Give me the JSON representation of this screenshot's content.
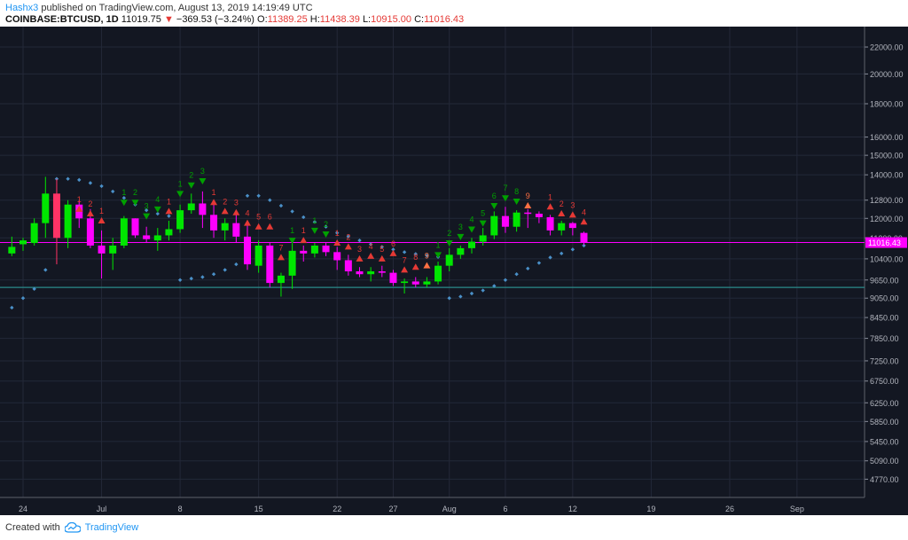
{
  "header": {
    "username": "Hashx3",
    "published_text": "published on TradingView.com, August 13, 2019 14:19:49 UTC",
    "symbol": "COINBASE:BTCUSD, 1D",
    "last": "11019.75",
    "change": "−369.53 (−3.24%)",
    "o_label": "O:",
    "o_value": "11389.25",
    "h_label": "H:",
    "h_value": "11438.39",
    "l_label": "L:",
    "l_value": "10915.00",
    "c_label": "C:",
    "c_value": "11016.43"
  },
  "footer": {
    "created_with": "Created with",
    "brand": "TradingView"
  },
  "colors": {
    "background": "#131722",
    "grid": "#232838",
    "up": "#00e600",
    "down": "#ff00ff",
    "down_early": "#ff3366",
    "sar": "#4a90c8",
    "buy_setup": "#00a000",
    "sell_setup": "#e53935",
    "orange_signal": "#ff7043",
    "support_line": "#2a8a8a",
    "price_line": "#ff00ff"
  },
  "chart_data": {
    "type": "candlestick",
    "scale": "log",
    "ylim": [
      4500,
      23500
    ],
    "y_ticks": [
      22000,
      20000,
      18000,
      16000,
      15000,
      14000,
      12800,
      12000,
      11200,
      10400,
      9650,
      9050,
      8450,
      7850,
      7250,
      6750,
      6250,
      5850,
      5450,
      5090,
      4770
    ],
    "y_tick_labels": [
      "22000.00",
      "20000.00",
      "18000.00",
      "16000.00",
      "15000.00",
      "14000.00",
      "12800.00",
      "12000.00",
      "11200.00",
      "10400.00",
      "9650.00",
      "9050.00",
      "8450.00",
      "7850.00",
      "7250.00",
      "6750.00",
      "6250.00",
      "5850.00",
      "5450.00",
      "5090.00",
      "4770.00"
    ],
    "last_price": 11016.43,
    "last_price_label": "11016.43",
    "support_level": 9400,
    "x_labels": [
      {
        "day": 0,
        "label": "24"
      },
      {
        "day": 7,
        "label": "Jul"
      },
      {
        "day": 14,
        "label": "8"
      },
      {
        "day": 21,
        "label": "15"
      },
      {
        "day": 28,
        "label": "22"
      },
      {
        "day": 33,
        "label": "27"
      },
      {
        "day": 38,
        "label": "Aug"
      },
      {
        "day": 43,
        "label": "6"
      },
      {
        "day": 49,
        "label": "12"
      },
      {
        "day": 56,
        "label": "19"
      },
      {
        "day": 63,
        "label": "26"
      },
      {
        "day": 69,
        "label": "Sep"
      }
    ],
    "candles": [
      {
        "day": -1,
        "o": 10600,
        "h": 11250,
        "l": 10500,
        "c": 10850
      },
      {
        "day": 0,
        "o": 10950,
        "h": 11200,
        "l": 10700,
        "c": 11100
      },
      {
        "day": 1,
        "o": 11000,
        "h": 12000,
        "l": 10900,
        "c": 11800
      },
      {
        "day": 2,
        "o": 11800,
        "h": 13900,
        "l": 11200,
        "c": 13100
      },
      {
        "day": 3,
        "o": 13100,
        "h": 13800,
        "l": 10200,
        "c": 11200
      },
      {
        "day": 4,
        "o": 11200,
        "h": 12800,
        "l": 10800,
        "c": 12600
      },
      {
        "day": 5,
        "o": 12600,
        "h": 12800,
        "l": 11600,
        "c": 12000
      },
      {
        "day": 6,
        "o": 12000,
        "h": 12400,
        "l": 10800,
        "c": 10900
      },
      {
        "day": 7,
        "o": 10900,
        "h": 11500,
        "l": 9700,
        "c": 10600
      },
      {
        "day": 8,
        "o": 10600,
        "h": 11200,
        "l": 10000,
        "c": 10900
      },
      {
        "day": 9,
        "o": 10900,
        "h": 12100,
        "l": 10800,
        "c": 12000
      },
      {
        "day": 10,
        "o": 12000,
        "h": 12000,
        "l": 11200,
        "c": 11300
      },
      {
        "day": 11,
        "o": 11300,
        "h": 11650,
        "l": 11000,
        "c": 11150
      },
      {
        "day": 12,
        "o": 11100,
        "h": 11600,
        "l": 10700,
        "c": 11300
      },
      {
        "day": 13,
        "o": 11300,
        "h": 11900,
        "l": 11100,
        "c": 11550
      },
      {
        "day": 14,
        "o": 11550,
        "h": 12600,
        "l": 11400,
        "c": 12350
      },
      {
        "day": 15,
        "o": 12350,
        "h": 13100,
        "l": 12200,
        "c": 12650
      },
      {
        "day": 16,
        "o": 12650,
        "h": 13200,
        "l": 11600,
        "c": 12150
      },
      {
        "day": 17,
        "o": 12150,
        "h": 12700,
        "l": 11200,
        "c": 11500
      },
      {
        "day": 18,
        "o": 11500,
        "h": 12000,
        "l": 11100,
        "c": 11800
      },
      {
        "day": 19,
        "o": 11800,
        "h": 12200,
        "l": 11000,
        "c": 11250
      },
      {
        "day": 20,
        "o": 11250,
        "h": 11700,
        "l": 10000,
        "c": 10200
      },
      {
        "day": 21,
        "o": 10150,
        "h": 11100,
        "l": 9900,
        "c": 10900
      },
      {
        "day": 22,
        "o": 10900,
        "h": 11000,
        "l": 9400,
        "c": 9550
      },
      {
        "day": 23,
        "o": 9550,
        "h": 9900,
        "l": 9100,
        "c": 9800
      },
      {
        "day": 24,
        "o": 9800,
        "h": 11000,
        "l": 9350,
        "c": 10700
      },
      {
        "day": 25,
        "o": 10700,
        "h": 10900,
        "l": 10300,
        "c": 10600
      },
      {
        "day": 26,
        "o": 10600,
        "h": 11000,
        "l": 10450,
        "c": 10900
      },
      {
        "day": 27,
        "o": 10900,
        "h": 11000,
        "l": 10500,
        "c": 10650
      },
      {
        "day": 28,
        "o": 10650,
        "h": 10850,
        "l": 10000,
        "c": 10350
      },
      {
        "day": 29,
        "o": 10350,
        "h": 10550,
        "l": 9800,
        "c": 9950
      },
      {
        "day": 30,
        "o": 9950,
        "h": 10100,
        "l": 9750,
        "c": 9850
      },
      {
        "day": 31,
        "o": 9850,
        "h": 10100,
        "l": 9600,
        "c": 9950
      },
      {
        "day": 32,
        "o": 9950,
        "h": 10150,
        "l": 9750,
        "c": 9900
      },
      {
        "day": 33,
        "o": 9900,
        "h": 10000,
        "l": 9450,
        "c": 9550
      },
      {
        "day": 34,
        "o": 9550,
        "h": 9700,
        "l": 9200,
        "c": 9600
      },
      {
        "day": 35,
        "o": 9600,
        "h": 9750,
        "l": 9400,
        "c": 9500
      },
      {
        "day": 36,
        "o": 9500,
        "h": 9750,
        "l": 9400,
        "c": 9600
      },
      {
        "day": 37,
        "o": 9600,
        "h": 10300,
        "l": 9500,
        "c": 10150
      },
      {
        "day": 38,
        "o": 10150,
        "h": 10800,
        "l": 9950,
        "c": 10550
      },
      {
        "day": 39,
        "o": 10550,
        "h": 10900,
        "l": 10400,
        "c": 10800
      },
      {
        "day": 40,
        "o": 10800,
        "h": 11200,
        "l": 10600,
        "c": 11050
      },
      {
        "day": 41,
        "o": 11050,
        "h": 11600,
        "l": 10900,
        "c": 11300
      },
      {
        "day": 42,
        "o": 11300,
        "h": 12300,
        "l": 11150,
        "c": 12100
      },
      {
        "day": 43,
        "o": 12100,
        "h": 12500,
        "l": 11400,
        "c": 11650
      },
      {
        "day": 44,
        "o": 11650,
        "h": 12350,
        "l": 11450,
        "c": 12250
      },
      {
        "day": 45,
        "o": 12250,
        "h": 12400,
        "l": 11600,
        "c": 12200
      },
      {
        "day": 46,
        "o": 12200,
        "h": 12300,
        "l": 11800,
        "c": 12050
      },
      {
        "day": 47,
        "o": 12050,
        "h": 12150,
        "l": 11300,
        "c": 11500
      },
      {
        "day": 48,
        "o": 11500,
        "h": 11900,
        "l": 11300,
        "c": 11800
      },
      {
        "day": 49,
        "o": 11800,
        "h": 11850,
        "l": 11300,
        "c": 11600
      },
      {
        "day": 50,
        "o": 11400,
        "h": 11450,
        "l": 10915,
        "c": 11016
      }
    ],
    "sar": [
      {
        "day": -1,
        "v": 8750
      },
      {
        "day": 0,
        "v": 9050
      },
      {
        "day": 1,
        "v": 9350
      },
      {
        "day": 2,
        "v": 10000
      },
      {
        "day": 3,
        "v": 13800
      },
      {
        "day": 4,
        "v": 13800
      },
      {
        "day": 5,
        "v": 13750
      },
      {
        "day": 6,
        "v": 13600
      },
      {
        "day": 7,
        "v": 13450
      },
      {
        "day": 8,
        "v": 13200
      },
      {
        "day": 9,
        "v": 12900
      },
      {
        "day": 10,
        "v": 12600
      },
      {
        "day": 11,
        "v": 12350
      },
      {
        "day": 12,
        "v": 12200
      },
      {
        "day": 13,
        "v": 12100
      },
      {
        "day": 14,
        "v": 9650
      },
      {
        "day": 15,
        "v": 9700
      },
      {
        "day": 16,
        "v": 9750
      },
      {
        "day": 17,
        "v": 9850
      },
      {
        "day": 18,
        "v": 10000
      },
      {
        "day": 19,
        "v": 10200
      },
      {
        "day": 20,
        "v": 13000
      },
      {
        "day": 21,
        "v": 13000
      },
      {
        "day": 22,
        "v": 12800
      },
      {
        "day": 23,
        "v": 12550
      },
      {
        "day": 24,
        "v": 12300
      },
      {
        "day": 25,
        "v": 12050
      },
      {
        "day": 26,
        "v": 11850
      },
      {
        "day": 27,
        "v": 11650
      },
      {
        "day": 28,
        "v": 11400
      },
      {
        "day": 29,
        "v": 11250
      },
      {
        "day": 30,
        "v": 11100
      },
      {
        "day": 31,
        "v": 10950
      },
      {
        "day": 32,
        "v": 10850
      },
      {
        "day": 33,
        "v": 10750
      },
      {
        "day": 34,
        "v": 10650
      },
      {
        "day": 35,
        "v": 10580
      },
      {
        "day": 36,
        "v": 10520
      },
      {
        "day": 37,
        "v": 10470
      },
      {
        "day": 38,
        "v": 9050
      },
      {
        "day": 39,
        "v": 9100
      },
      {
        "day": 40,
        "v": 9200
      },
      {
        "day": 41,
        "v": 9300
      },
      {
        "day": 42,
        "v": 9450
      },
      {
        "day": 43,
        "v": 9650
      },
      {
        "day": 44,
        "v": 9850
      },
      {
        "day": 45,
        "v": 10050
      },
      {
        "day": 46,
        "v": 10250
      },
      {
        "day": 47,
        "v": 10450
      },
      {
        "day": 48,
        "v": 10600
      },
      {
        "day": 49,
        "v": 10750
      },
      {
        "day": 50,
        "v": 10900
      }
    ],
    "setup_marks": [
      {
        "day": 5,
        "v": 12400,
        "dir": "up",
        "label": "1",
        "color": "sell"
      },
      {
        "day": 6,
        "v": 12200,
        "dir": "up",
        "label": "2",
        "color": "sell"
      },
      {
        "day": 7,
        "v": 11900,
        "dir": "up",
        "label": "1",
        "color": "sell"
      },
      {
        "day": 9,
        "v": 12700,
        "dir": "down",
        "label": "1",
        "color": "buy"
      },
      {
        "day": 10,
        "v": 12700,
        "dir": "down",
        "label": "2",
        "color": "buy"
      },
      {
        "day": 11,
        "v": 12100,
        "dir": "down",
        "label": "3",
        "color": "buy"
      },
      {
        "day": 12,
        "v": 12400,
        "dir": "down",
        "label": "4",
        "color": "buy"
      },
      {
        "day": 13,
        "v": 12300,
        "dir": "up",
        "label": "1",
        "color": "sell"
      },
      {
        "day": 14,
        "v": 13100,
        "dir": "down",
        "label": "1",
        "color": "buy"
      },
      {
        "day": 15,
        "v": 13500,
        "dir": "down",
        "label": "2",
        "color": "buy"
      },
      {
        "day": 16,
        "v": 13700,
        "dir": "down",
        "label": "3",
        "color": "buy"
      },
      {
        "day": 17,
        "v": 12700,
        "dir": "up",
        "label": "1",
        "color": "sell"
      },
      {
        "day": 18,
        "v": 12300,
        "dir": "up",
        "label": "2",
        "color": "sell"
      },
      {
        "day": 19,
        "v": 12250,
        "dir": "up",
        "label": "3",
        "color": "sell"
      },
      {
        "day": 20,
        "v": 11800,
        "dir": "up",
        "label": "4",
        "color": "sell"
      },
      {
        "day": 21,
        "v": 11650,
        "dir": "up",
        "label": "5",
        "color": "sell"
      },
      {
        "day": 22,
        "v": 11650,
        "dir": "up",
        "label": "6",
        "color": "sell"
      },
      {
        "day": 23,
        "v": 10450,
        "dir": "up",
        "label": "7",
        "color": "sell"
      },
      {
        "day": 24,
        "v": 11100,
        "dir": "down",
        "label": "1",
        "color": "buy"
      },
      {
        "day": 25,
        "v": 11100,
        "dir": "up",
        "label": "1",
        "color": "sell"
      },
      {
        "day": 26,
        "v": 11500,
        "dir": "down",
        "label": "1",
        "color": "buy"
      },
      {
        "day": 27,
        "v": 11350,
        "dir": "down",
        "label": "2",
        "color": "buy"
      },
      {
        "day": 28,
        "v": 11000,
        "dir": "up",
        "label": "1",
        "color": "sell"
      },
      {
        "day": 29,
        "v": 10850,
        "dir": "up",
        "label": "2",
        "color": "sell"
      },
      {
        "day": 30,
        "v": 10400,
        "dir": "up",
        "label": "3",
        "color": "sell"
      },
      {
        "day": 31,
        "v": 10500,
        "dir": "up",
        "label": "4",
        "color": "sell"
      },
      {
        "day": 32,
        "v": 10400,
        "dir": "up",
        "label": "5",
        "color": "sell"
      },
      {
        "day": 33,
        "v": 10600,
        "dir": "up",
        "label": "6",
        "color": "sell"
      },
      {
        "day": 34,
        "v": 10000,
        "dir": "up",
        "label": "7",
        "color": "sell"
      },
      {
        "day": 35,
        "v": 10100,
        "dir": "up",
        "label": "8",
        "color": "sell"
      },
      {
        "day": 36,
        "v": 10150,
        "dir": "up",
        "label": "9",
        "color": "orange"
      },
      {
        "day": 37,
        "v": 10550,
        "dir": "down",
        "label": "1",
        "color": "buy"
      },
      {
        "day": 38,
        "v": 11000,
        "dir": "down",
        "label": "2",
        "color": "buy"
      },
      {
        "day": 39,
        "v": 11250,
        "dir": "down",
        "label": "3",
        "color": "buy"
      },
      {
        "day": 40,
        "v": 11550,
        "dir": "down",
        "label": "4",
        "color": "buy"
      },
      {
        "day": 41,
        "v": 11800,
        "dir": "down",
        "label": "5",
        "color": "buy"
      },
      {
        "day": 42,
        "v": 12550,
        "dir": "down",
        "label": "6",
        "color": "buy"
      },
      {
        "day": 43,
        "v": 12900,
        "dir": "down",
        "label": "7",
        "color": "buy"
      },
      {
        "day": 44,
        "v": 12750,
        "dir": "down",
        "label": "8",
        "color": "buy"
      },
      {
        "day": 45,
        "v": 12550,
        "dir": "up",
        "label": "9",
        "color": "orange"
      },
      {
        "day": 47,
        "v": 12500,
        "dir": "up",
        "label": "1",
        "color": "sell"
      },
      {
        "day": 48,
        "v": 12200,
        "dir": "up",
        "label": "2",
        "color": "sell"
      },
      {
        "day": 49,
        "v": 12150,
        "dir": "up",
        "label": "3",
        "color": "sell"
      },
      {
        "day": 50,
        "v": 11850,
        "dir": "up",
        "label": "4",
        "color": "sell"
      }
    ]
  }
}
